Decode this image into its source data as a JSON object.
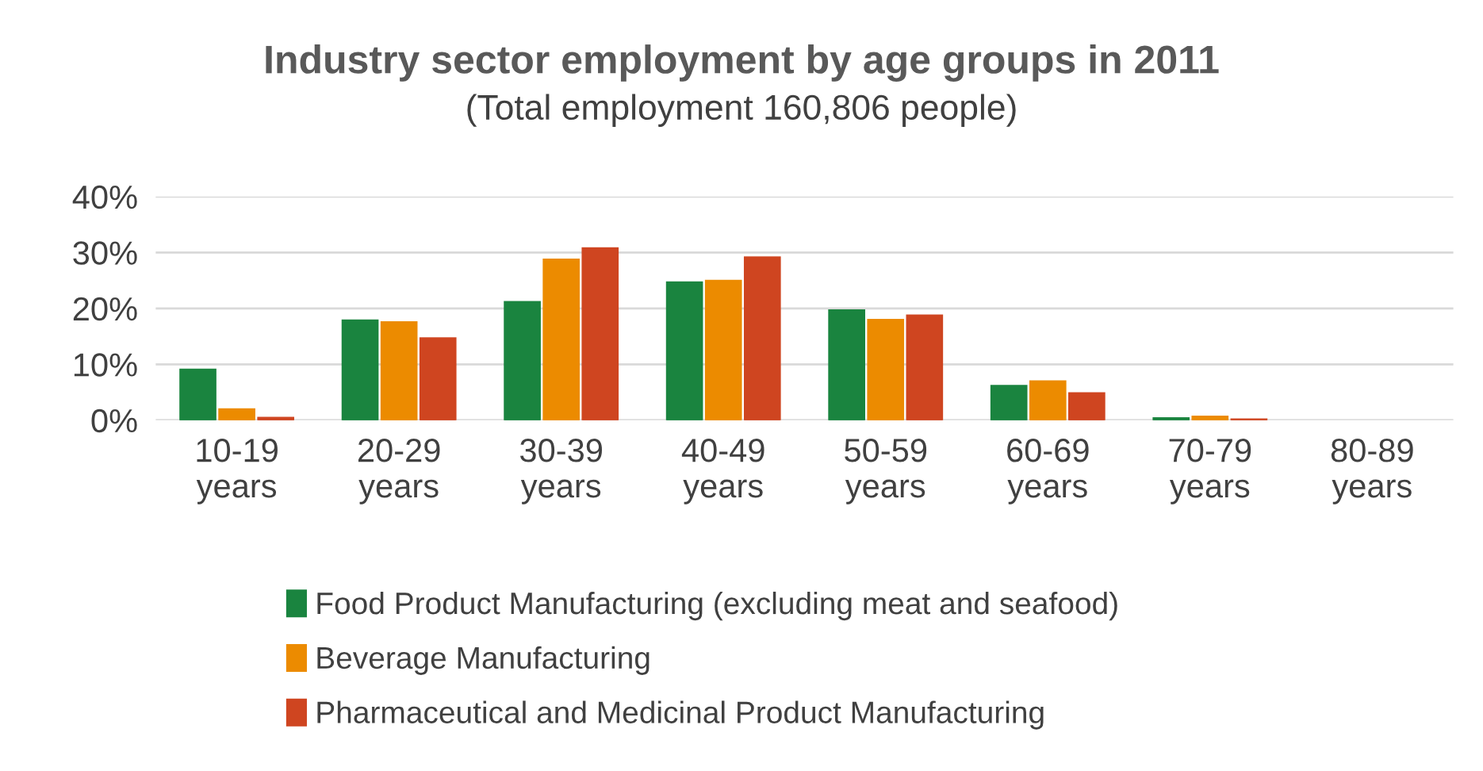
{
  "chart_data": {
    "type": "bar",
    "title": "Industry sector employment by age groups in 2011",
    "subtitle": "(Total employment 160,806 people)",
    "categories": [
      "10-19\nyears",
      "20-29\nyears",
      "30-39\nyears",
      "40-49\nyears",
      "50-59\nyears",
      "60-69\nyears",
      "70-79\nyears",
      "80-89\nyears"
    ],
    "series": [
      {
        "name": "Food Product Manufacturing (excluding meat and seafood)",
        "color": "#1a843f",
        "values": [
          9.1,
          17.9,
          21.2,
          24.7,
          19.7,
          6.2,
          0.4,
          null
        ]
      },
      {
        "name": "Beverage Manufacturing",
        "color": "#ec8b00",
        "values": [
          2.0,
          17.6,
          28.8,
          25.0,
          18.0,
          7.0,
          0.7,
          null
        ]
      },
      {
        "name": "Pharmaceutical and Medicinal Product Manufacturing",
        "color": "#cf4520",
        "values": [
          0.5,
          14.7,
          30.8,
          29.2,
          18.8,
          4.9,
          0.2,
          null
        ]
      }
    ],
    "ylim": [
      0,
      40
    ],
    "yticks": [
      {
        "value": 0,
        "label": "0%"
      },
      {
        "value": 10,
        "label": "10%"
      },
      {
        "value": 20,
        "label": "20%"
      },
      {
        "value": 30,
        "label": "30%"
      },
      {
        "value": 40,
        "label": "40%"
      }
    ],
    "grid": "y",
    "legend": "bottom"
  }
}
